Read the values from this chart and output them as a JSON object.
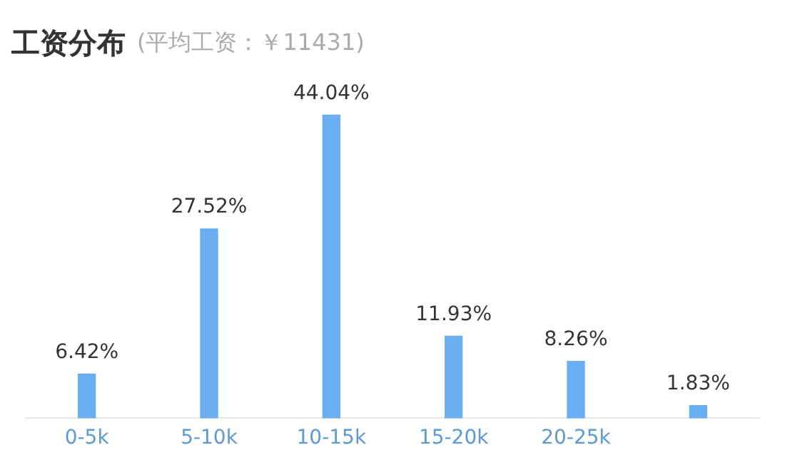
{
  "chart_data": {
    "type": "bar",
    "title": "工资分布",
    "subtitle": "(平均工资：￥11431)",
    "categories": [
      "0-5k",
      "5-10k",
      "10-15k",
      "15-20k",
      "20-25k",
      null
    ],
    "values": [
      6.42,
      27.52,
      44.04,
      11.93,
      8.26,
      1.83
    ],
    "value_labels": [
      "6.42%",
      "27.52%",
      "44.04%",
      "11.93%",
      "8.26%",
      "1.83%"
    ],
    "color": "#69aef0",
    "grid": false,
    "legend": false
  }
}
